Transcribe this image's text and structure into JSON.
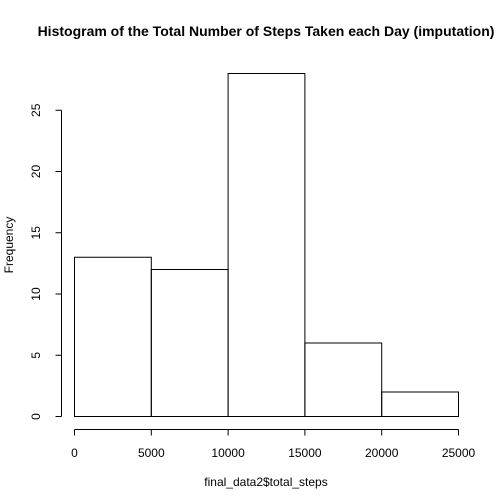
{
  "chart_data": {
    "type": "bar",
    "title": "Histogram of the Total Number of Steps Taken each Day (imputation)",
    "xlabel": "final_data2$total_steps",
    "ylabel": "Frequency",
    "bins": [
      {
        "start": 0,
        "end": 5000,
        "count": 13
      },
      {
        "start": 5000,
        "end": 10000,
        "count": 12
      },
      {
        "start": 10000,
        "end": 15000,
        "count": 28
      },
      {
        "start": 15000,
        "end": 20000,
        "count": 6
      },
      {
        "start": 20000,
        "end": 25000,
        "count": 2
      }
    ],
    "xlim": [
      0,
      25000
    ],
    "ylim": [
      0,
      28
    ],
    "x_ticks": [
      0,
      5000,
      10000,
      15000,
      20000,
      25000
    ],
    "y_ticks": [
      0,
      5,
      10,
      15,
      20,
      25
    ],
    "grid": false,
    "bar_fill": "#ffffff",
    "bar_stroke": "#000000"
  }
}
